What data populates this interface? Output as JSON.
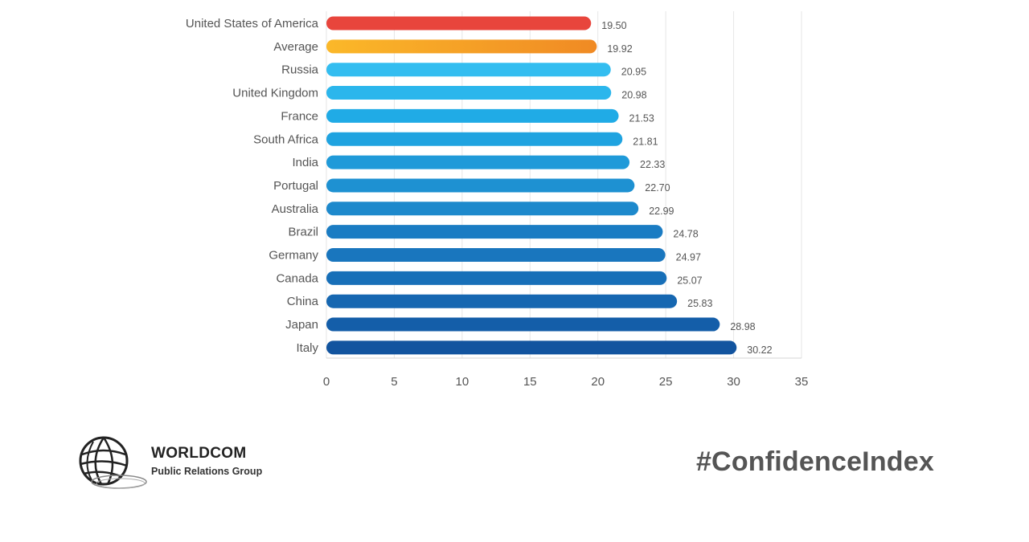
{
  "chart_data": {
    "type": "bar",
    "orientation": "horizontal",
    "title": "",
    "xlabel": "",
    "ylabel": "",
    "xlim": [
      0,
      35
    ],
    "xticks": [
      0,
      5,
      10,
      15,
      20,
      25,
      30,
      35
    ],
    "grid": true,
    "categories": [
      "United States of America",
      "Average",
      "Russia",
      "United Kingdom",
      "France",
      "South Africa",
      "India",
      "Portugal",
      "Australia",
      "Brazil",
      "Germany",
      "Canada",
      "China",
      "Japan",
      "Italy"
    ],
    "values": [
      19.5,
      19.92,
      20.95,
      20.98,
      21.53,
      21.81,
      22.33,
      22.7,
      22.99,
      24.78,
      24.97,
      25.07,
      25.83,
      28.98,
      30.22
    ],
    "value_labels": [
      "19.50",
      "19.92",
      "20.95",
      "20.98",
      "21.53",
      "21.81",
      "22.33",
      "22.70",
      "22.99",
      "24.78",
      "24.97",
      "25.07",
      "25.83",
      "28.98",
      "30.22"
    ],
    "colors": [
      "#e8453c",
      "#f39a1f",
      "#33bdf0",
      "#2bb6ec",
      "#20abe6",
      "#1fa3e0",
      "#1f9ad9",
      "#1e91d2",
      "#1d89cc",
      "#1a7cc3",
      "#1976be",
      "#176fb8",
      "#1667b1",
      "#145ea9",
      "#12549f"
    ]
  },
  "branding": {
    "logo_name": "WORLDCOM",
    "logo_sub": "Public Relations Group",
    "hashtag": "#ConfidenceIndex"
  }
}
